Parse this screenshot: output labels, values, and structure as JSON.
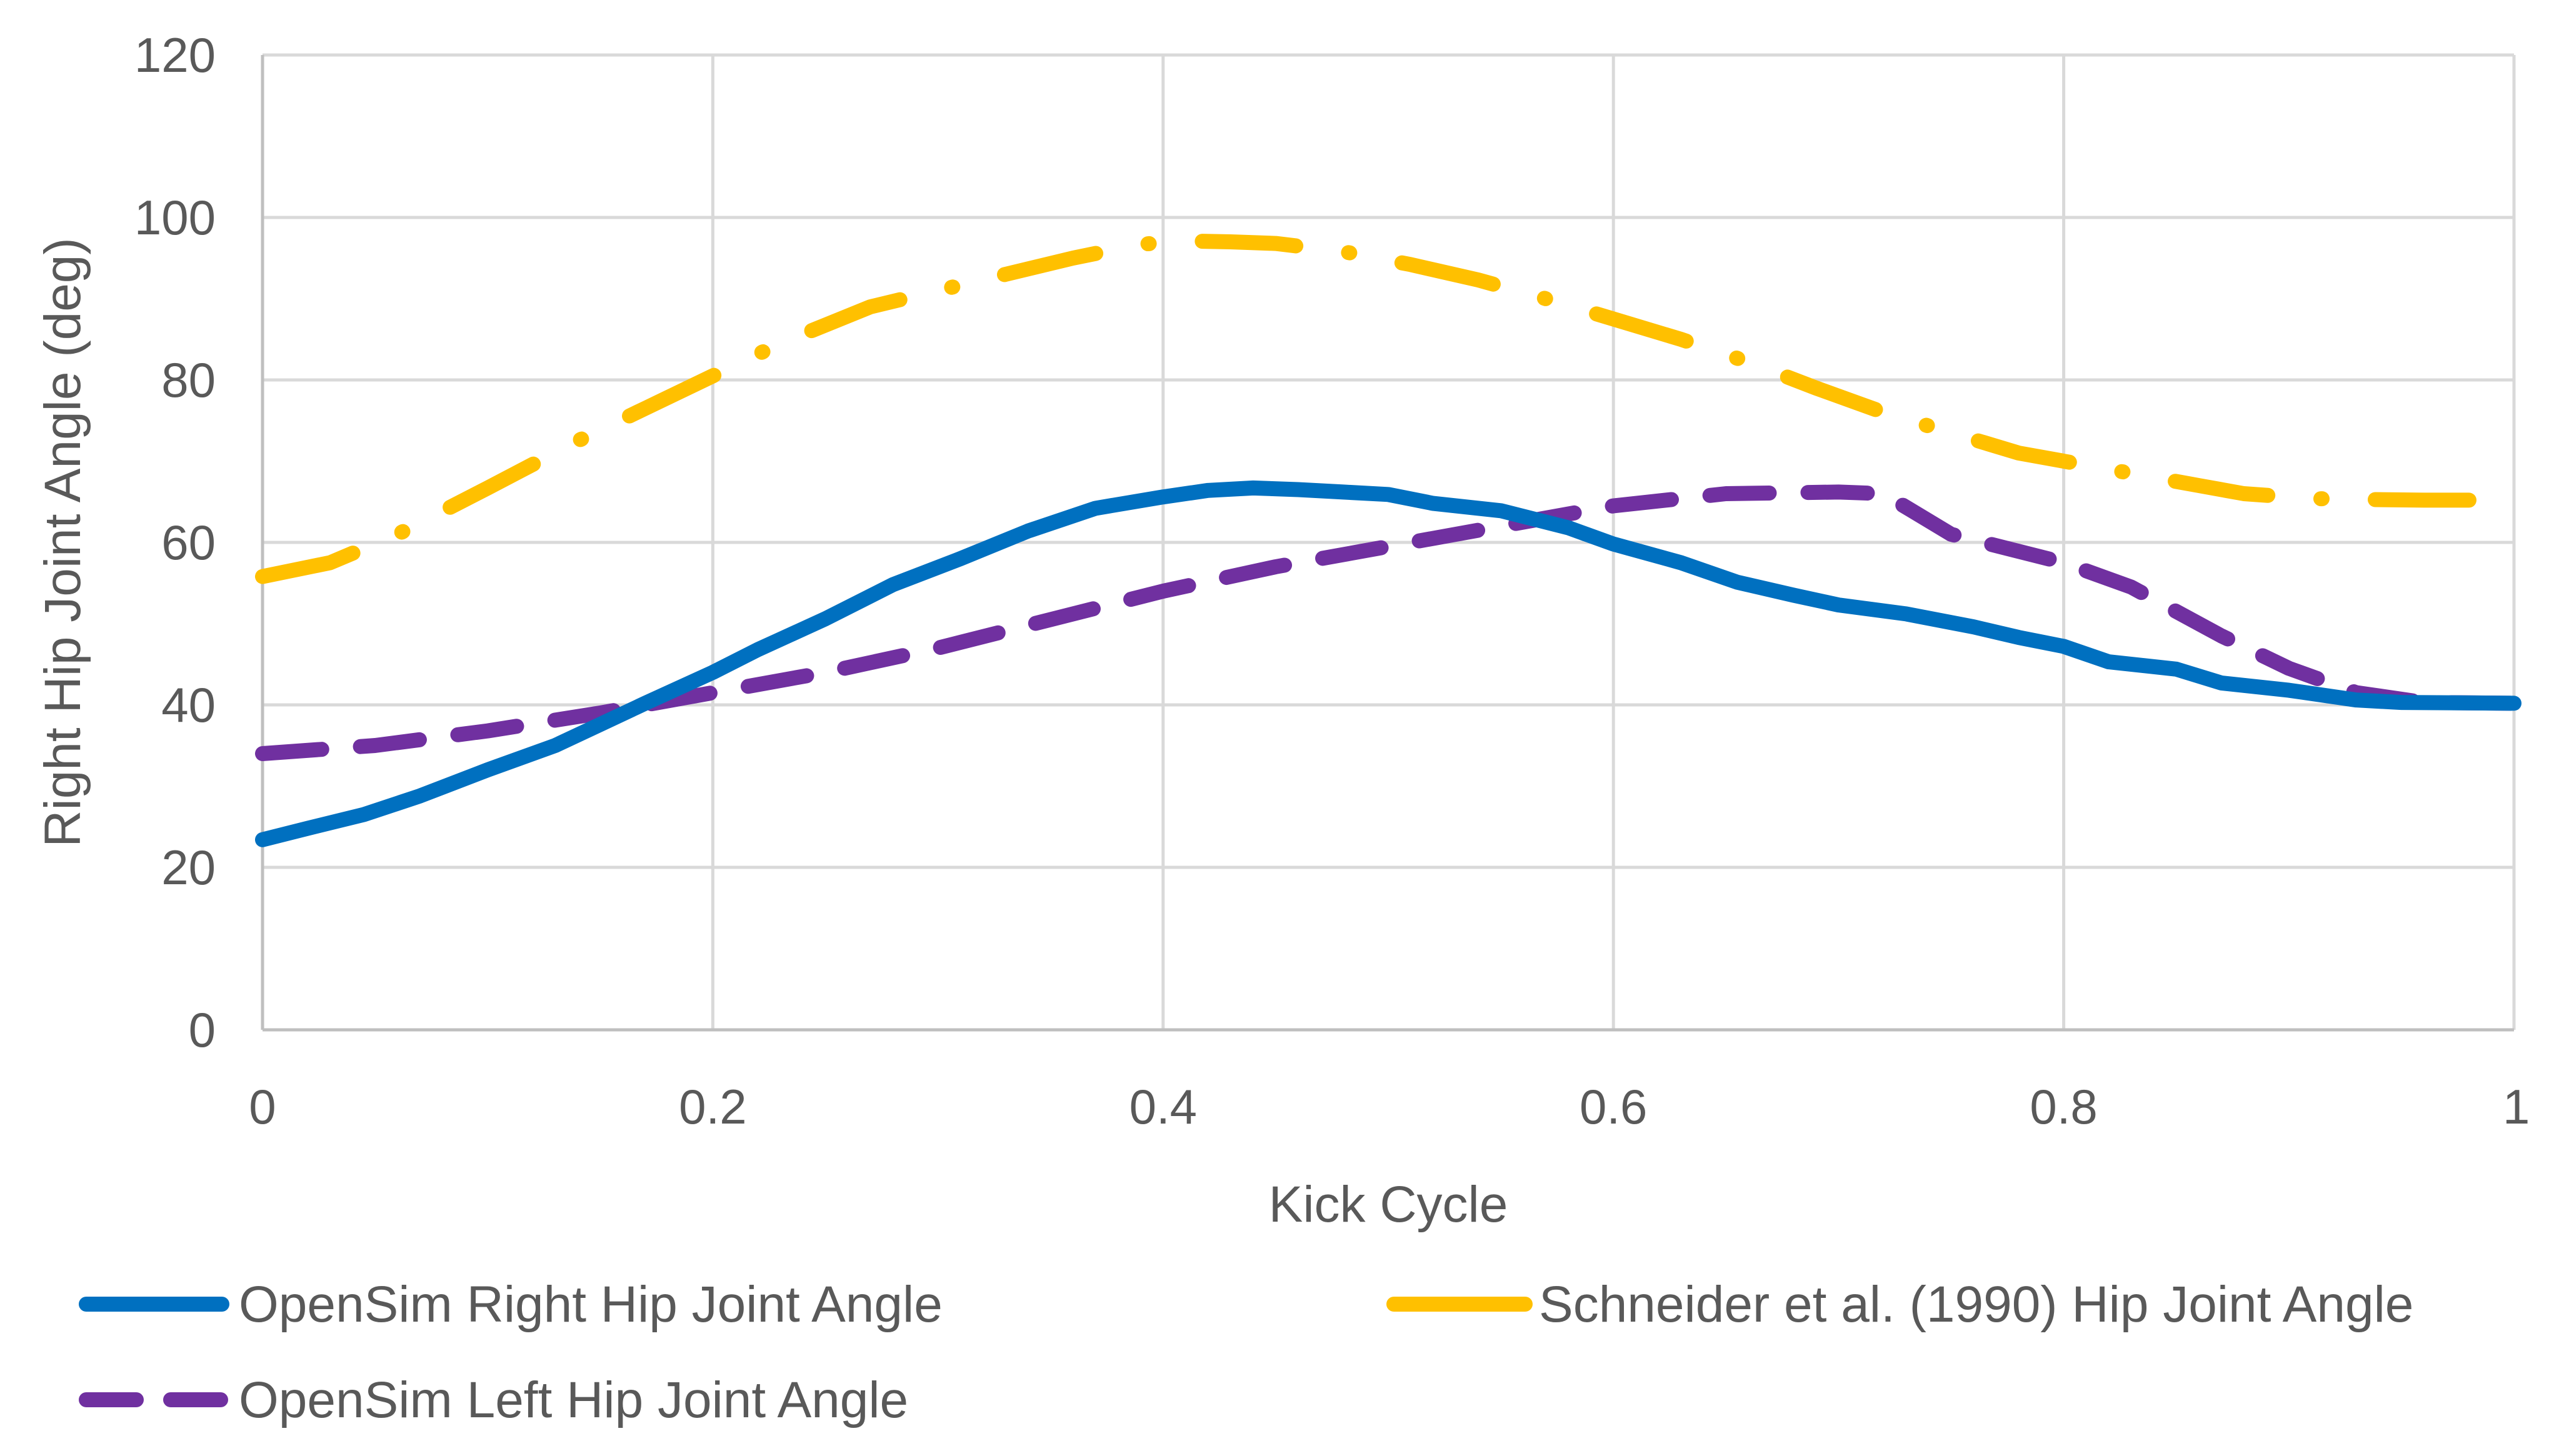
{
  "chart_data": {
    "type": "line",
    "title": "",
    "xlabel": "Kick Cycle",
    "ylabel": "Right Hip Joint Angle (deg)",
    "xlim": [
      0,
      1
    ],
    "ylim": [
      0,
      120
    ],
    "xticks": [
      0,
      0.2,
      0.4,
      0.6,
      0.8,
      1
    ],
    "xtick_labels": [
      "0",
      "0.2",
      "0.4",
      "0.6",
      "0.8",
      "1"
    ],
    "yticks": [
      0,
      20,
      40,
      60,
      80,
      100,
      120
    ],
    "ytick_labels": [
      "0",
      "20",
      "40",
      "60",
      "80",
      "100",
      "120"
    ],
    "grid": true,
    "legend_position": "bottom",
    "series": [
      {
        "name": "OpenSim Right Hip Joint Angle",
        "color": "#0070C0",
        "style": "solid",
        "x": [
          0,
          0.02,
          0.045,
          0.07,
          0.1,
          0.13,
          0.15,
          0.17,
          0.2,
          0.22,
          0.25,
          0.28,
          0.31,
          0.34,
          0.37,
          0.4,
          0.42,
          0.44,
          0.46,
          0.48,
          0.5,
          0.52,
          0.55,
          0.58,
          0.6,
          0.63,
          0.655,
          0.68,
          0.7,
          0.73,
          0.76,
          0.78,
          0.8,
          0.82,
          0.85,
          0.87,
          0.9,
          0.93,
          0.95,
          1.0
        ],
        "y": [
          23.4,
          24.8,
          26.5,
          28.8,
          32.0,
          35.0,
          37.6,
          40.2,
          44.0,
          46.8,
          50.6,
          54.8,
          58.0,
          61.4,
          64.2,
          65.6,
          66.4,
          66.7,
          66.5,
          66.2,
          65.9,
          64.8,
          63.9,
          61.8,
          59.8,
          57.5,
          55.1,
          53.5,
          52.3,
          51.2,
          49.6,
          48.3,
          47.2,
          45.3,
          44.4,
          42.7,
          41.8,
          40.6,
          40.3,
          40.2
        ]
      },
      {
        "name": "OpenSim Left Hip Joint Angle",
        "color": "#7030A0",
        "style": "dashed",
        "x": [
          0,
          0.05,
          0.1,
          0.15,
          0.2,
          0.25,
          0.3,
          0.35,
          0.4,
          0.45,
          0.5,
          0.55,
          0.6,
          0.65,
          0.7,
          0.72,
          0.75,
          0.8,
          0.83,
          0.87,
          0.9,
          0.93,
          0.96,
          1.0
        ],
        "y": [
          34.0,
          35.0,
          36.8,
          39.0,
          41.5,
          44.0,
          47.0,
          50.5,
          54.0,
          57.0,
          59.5,
          62.0,
          64.5,
          66.0,
          66.2,
          66.0,
          61.0,
          57.5,
          54.5,
          48.5,
          44.5,
          41.5,
          40.3,
          40.2
        ]
      },
      {
        "name": "Schneider et al. (1990) Hip Joint Angle",
        "color": "#FFC000",
        "style": "dash-dot",
        "x": [
          0,
          0.03,
          0.06,
          0.1,
          0.14,
          0.17,
          0.2,
          0.23,
          0.27,
          0.3,
          0.33,
          0.36,
          0.39,
          0.41,
          0.43,
          0.45,
          0.48,
          0.51,
          0.54,
          0.57,
          0.6,
          0.63,
          0.66,
          0.69,
          0.72,
          0.75,
          0.78,
          0.8,
          0.83,
          0.86,
          0.88,
          0.91,
          0.93,
          0.96,
          1.0
        ],
        "y": [
          55.8,
          57.5,
          61.0,
          66.7,
          72.5,
          76.5,
          80.5,
          84.5,
          89.0,
          91.0,
          93.0,
          95.0,
          96.7,
          97.1,
          97.0,
          96.8,
          95.8,
          94.2,
          92.3,
          90.0,
          87.5,
          85.0,
          82.2,
          79.0,
          76.0,
          73.5,
          71.0,
          70.0,
          68.5,
          67.0,
          66.0,
          65.4,
          65.3,
          65.2,
          65.2
        ]
      }
    ]
  }
}
